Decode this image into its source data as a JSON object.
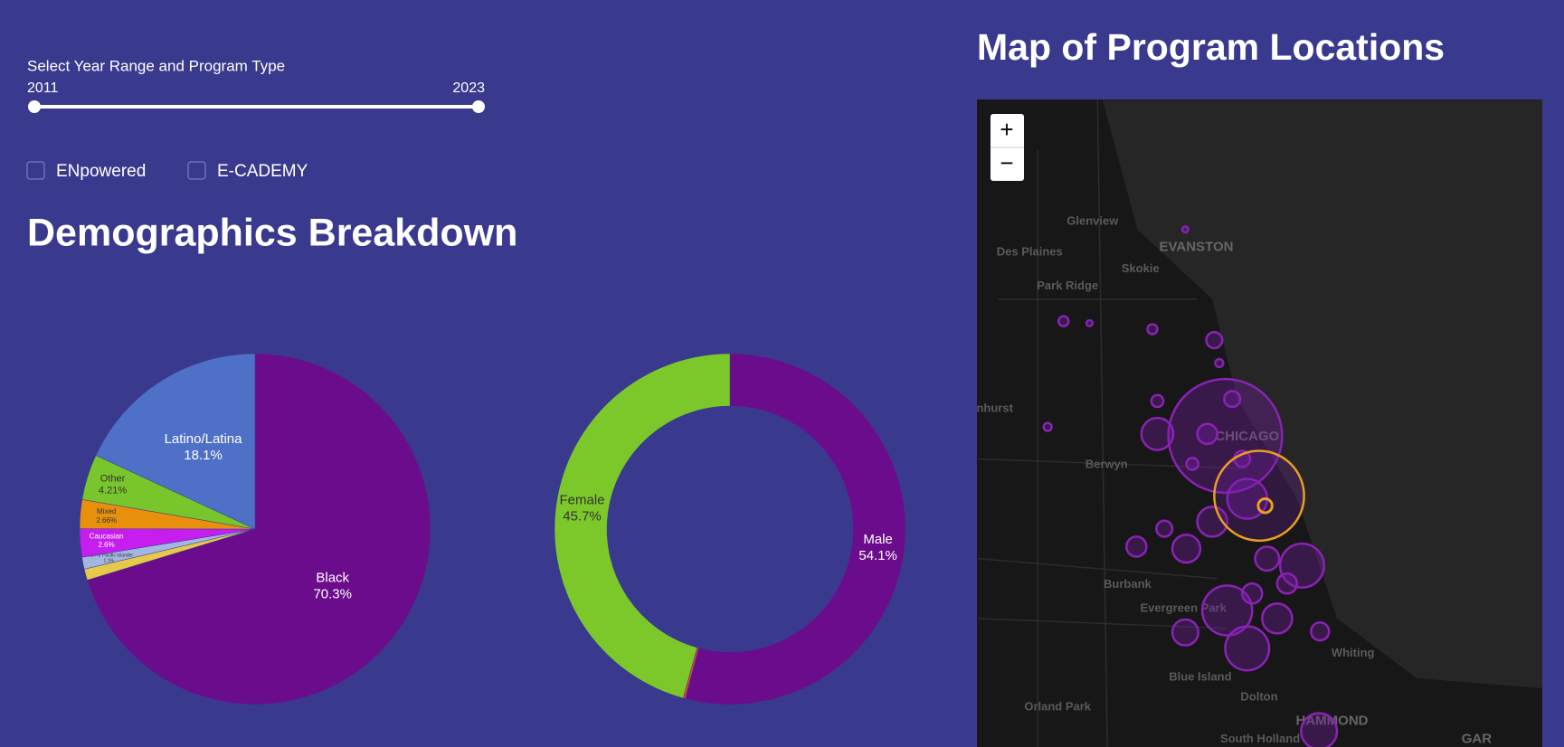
{
  "controls": {
    "slider_label": "Select Year Range and Program Type",
    "slider_values": [
      2011,
      2023
    ],
    "checkboxes": [
      "ENpowered",
      "E-CADEMY"
    ]
  },
  "demographics_title": "Demographics Breakdown",
  "chart_data": [
    {
      "type": "pie",
      "categories": [
        "Black",
        null,
        "Asian or Pacific Islander",
        "Caucasian",
        "Mixed",
        "Other",
        "Latino/Latina"
      ],
      "values": [
        70.3,
        1.03,
        1.1,
        2.6,
        2.66,
        4.21,
        18.1
      ],
      "value_labels": [
        "70.3%",
        null,
        "1.1%",
        "2.6%",
        "2.66%",
        "4.21%",
        "18.1%"
      ],
      "colors": [
        "#6b0c8c",
        "#e6c84a",
        "#a3b5e2",
        "#c51eef",
        "#e8900c",
        "#78c52c",
        "#4e70c6"
      ]
    },
    {
      "type": "donut",
      "categories": [
        "Male",
        null,
        "Female"
      ],
      "values": [
        54.1,
        0.2,
        45.7
      ],
      "value_labels": [
        "54.1%",
        null,
        "45.7%"
      ],
      "colors": [
        "#6b0c8c",
        "#e8402a",
        "#7cc82b"
      ]
    }
  ],
  "map": {
    "title": "Map of Program Locations",
    "zoom_in": "+",
    "zoom_out": "−",
    "places": [
      "Glenview",
      "EVANSTON",
      "Des Plaines",
      "Skokie",
      "Park Ridge",
      "CHICAGO",
      "nhurst",
      "Berwyn",
      "Burbank",
      "Evergreen Park",
      "Whiting",
      "Blue Island",
      "Dolton",
      "Orland Park",
      "HAMMOND",
      "South Holland",
      "GAR"
    ]
  }
}
